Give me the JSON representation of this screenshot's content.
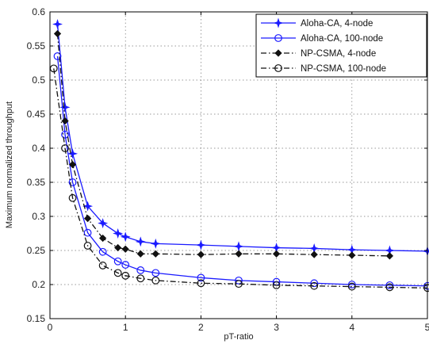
{
  "chart_data": {
    "type": "line",
    "xlabel": "pT-ratio",
    "ylabel": "Maximum normalized throughput",
    "xlim": [
      0,
      5
    ],
    "ylim": [
      0.15,
      0.6
    ],
    "xticks": [
      "0",
      "1",
      "2",
      "3",
      "4",
      "5"
    ],
    "yticks": [
      "0.15",
      "0.2",
      "0.25",
      "0.3",
      "0.35",
      "0.4",
      "0.45",
      "0.5",
      "0.55",
      "0.6"
    ],
    "grid": true,
    "legend_position": "top-right",
    "series": [
      {
        "name": "Aloha-CA, 4-node",
        "color": "#1a1aff",
        "line_style": "solid",
        "marker": "star-filled",
        "x": [
          0.1,
          0.2,
          0.3,
          0.5,
          0.7,
          0.9,
          1.0,
          1.2,
          1.4,
          2.0,
          2.5,
          3.0,
          3.5,
          4.0,
          4.5,
          5.0
        ],
        "y": [
          0.582,
          0.46,
          0.392,
          0.315,
          0.29,
          0.275,
          0.27,
          0.263,
          0.26,
          0.258,
          0.256,
          0.254,
          0.253,
          0.251,
          0.25,
          0.249
        ]
      },
      {
        "name": "Aloha-CA, 100-node",
        "color": "#1a1aff",
        "line_style": "solid",
        "marker": "circle-open",
        "x": [
          0.1,
          0.2,
          0.3,
          0.5,
          0.7,
          0.9,
          1.0,
          1.2,
          1.4,
          2.0,
          2.5,
          3.0,
          3.5,
          4.0,
          4.5,
          5.0
        ],
        "y": [
          0.535,
          0.42,
          0.35,
          0.276,
          0.248,
          0.234,
          0.229,
          0.221,
          0.217,
          0.21,
          0.206,
          0.204,
          0.202,
          0.2,
          0.199,
          0.198
        ]
      },
      {
        "name": "NP-CSMA, 4-node",
        "color": "#111111",
        "line_style": "dashdot",
        "marker": "diamond-filled",
        "x": [
          0.1,
          0.2,
          0.3,
          0.5,
          0.7,
          0.9,
          1.0,
          1.2,
          1.4,
          2.0,
          2.5,
          3.0,
          3.5,
          4.0,
          4.5
        ],
        "y": [
          0.568,
          0.44,
          0.376,
          0.297,
          0.268,
          0.254,
          0.252,
          0.245,
          0.245,
          0.244,
          0.245,
          0.245,
          0.244,
          0.243,
          0.242
        ]
      },
      {
        "name": "NP-CSMA, 100-node",
        "color": "#111111",
        "line_style": "dashdot",
        "marker": "circle-open",
        "x": [
          0.05,
          0.2,
          0.3,
          0.5,
          0.7,
          0.9,
          1.0,
          1.2,
          1.4,
          2.0,
          2.5,
          3.0,
          3.5,
          4.0,
          4.5,
          5.0
        ],
        "y": [
          0.517,
          0.4,
          0.327,
          0.257,
          0.228,
          0.217,
          0.213,
          0.209,
          0.206,
          0.202,
          0.201,
          0.199,
          0.198,
          0.197,
          0.196,
          0.195
        ]
      }
    ]
  }
}
